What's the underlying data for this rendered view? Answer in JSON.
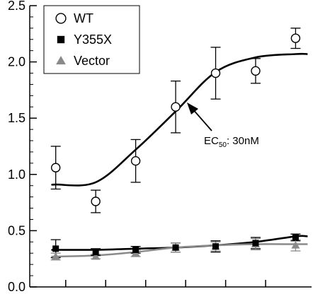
{
  "chart_data": {
    "type": "scatter",
    "title": "",
    "xlabel": "",
    "ylabel": "",
    "x_tick_labels_shown": false,
    "ylim": [
      0,
      2.5
    ],
    "y_ticks": [
      "0.0",
      "0.5",
      "1.0",
      "1.5",
      "2.0",
      "2.5"
    ],
    "grid": false,
    "legend_position": "top-left",
    "series": [
      {
        "name": "WT",
        "marker": "open-circle",
        "color": "#000000",
        "x": [
          1,
          2,
          3,
          4,
          5,
          6,
          7
        ],
        "y": [
          1.06,
          0.76,
          1.12,
          1.6,
          1.9,
          1.92,
          2.21
        ],
        "err": [
          0.19,
          0.1,
          0.19,
          0.23,
          0.23,
          0.11,
          0.09
        ],
        "fit": [
          0.91,
          0.93,
          1.22,
          1.56,
          1.91,
          2.04,
          2.07
        ]
      },
      {
        "name": "Y355X",
        "marker": "filled-square",
        "color": "#000000",
        "x": [
          1,
          2,
          3,
          4,
          5,
          6,
          7
        ],
        "y": [
          0.34,
          0.31,
          0.33,
          0.35,
          0.36,
          0.39,
          0.44
        ],
        "err": [
          0.08,
          0.03,
          0.03,
          0.04,
          0.05,
          0.05,
          0.03
        ],
        "fit": [
          0.33,
          0.33,
          0.34,
          0.35,
          0.37,
          0.4,
          0.45
        ]
      },
      {
        "name": "Vector",
        "marker": "filled-triangle",
        "color": "#8a8a8a",
        "x": [
          1,
          2,
          3,
          4,
          5,
          6,
          7
        ],
        "y": [
          0.27,
          0.27,
          0.3,
          0.35,
          0.36,
          0.38,
          0.37
        ],
        "err": [
          0.03,
          0.02,
          0.03,
          0.04,
          0.04,
          0.05,
          0.05
        ],
        "fit": [
          0.27,
          0.28,
          0.31,
          0.35,
          0.37,
          0.38,
          0.38
        ]
      }
    ],
    "annotation": {
      "prefix": "EC",
      "subscript": "50",
      "suffix": ": 30nM",
      "points_to_x": 4.3
    }
  }
}
